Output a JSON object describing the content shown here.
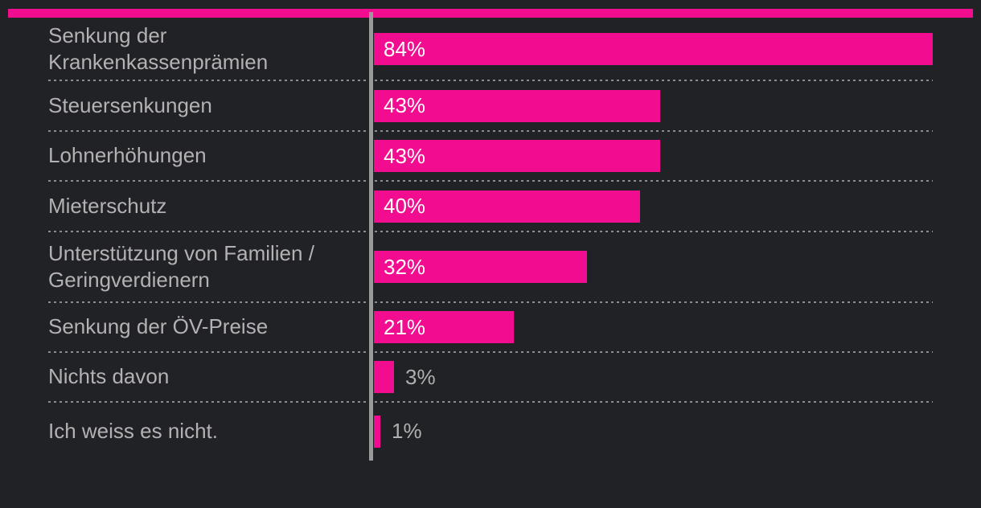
{
  "chart_data": {
    "type": "bar",
    "orientation": "horizontal",
    "categories": [
      "Senkung der Krankenkassenprämien",
      "Steuersenkungen",
      "Lohnerhöhungen",
      "Mieterschutz",
      "Unterstützung von Familien / Geringverdienern",
      "Senkung der ÖV-Preise",
      "Nichts davon",
      "Ich weiss es nicht."
    ],
    "values": [
      84,
      43,
      43,
      40,
      32,
      21,
      3,
      1
    ],
    "value_labels": [
      "84%",
      "43%",
      "43%",
      "40%",
      "32%",
      "21%",
      "3%",
      "1%"
    ],
    "title": "",
    "xlabel": "",
    "ylabel": "",
    "xlim": [
      0,
      100
    ],
    "grid": false,
    "legend": "none",
    "value_label_placement": "inside bar for large values, right of bar for small values"
  },
  "colors": {
    "background": "#212226",
    "bar": "#f20d90",
    "accent_strip": "#f20d90",
    "label_text": "#b4b1b4",
    "value_inside": "#ffffff",
    "value_outside": "#b0b0b0",
    "axis_line": "#9a9a9a",
    "separator": "#8c8c8c"
  }
}
